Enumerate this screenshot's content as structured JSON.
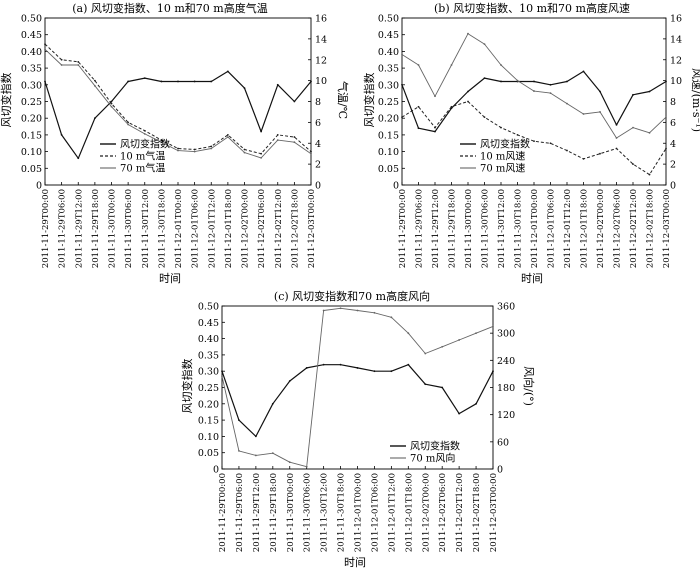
{
  "chart_data": [
    {
      "type": "line",
      "title": "(a) 风切变指数、10 m和70 m高度气温",
      "xlabel": "时间",
      "ylabel_left": "风切变指数",
      "ylabel_right": "气温/℃",
      "ylim_left": [
        0,
        0.5
      ],
      "ylim_right": [
        0,
        16
      ],
      "yticks_left": [
        "0",
        "0.05",
        "0.10",
        "0.15",
        "0.20",
        "0.25",
        "0.30",
        "0.35",
        "0.40",
        "0.45",
        "0.50"
      ],
      "yticks_right": [
        "0",
        "2",
        "4",
        "6",
        "8",
        "10",
        "12",
        "14",
        "16"
      ],
      "legend_position": "bottom-left",
      "x": [
        "2011-11-29T00:00",
        "2011-11-29T06:00",
        "2011-11-29T12:00",
        "2011-11-29T18:00",
        "2011-11-30T00:00",
        "2011-11-30T06:00",
        "2011-11-30T12:00",
        "2011-11-30T18:00",
        "2011-12-01T00:00",
        "2011-12-01T06:00",
        "2011-12-01T12:00",
        "2011-12-01T18:00",
        "2011-12-02T00:00",
        "2011-12-02T06:00",
        "2011-12-02T12:00",
        "2011-12-02T18:00",
        "2011-12-03T00:00"
      ],
      "series": [
        {
          "name": "风切变指数",
          "axis": "left",
          "style": "solid-dark",
          "values": [
            0.31,
            0.15,
            0.08,
            0.2,
            0.25,
            0.31,
            0.32,
            0.31,
            0.31,
            0.31,
            0.31,
            0.34,
            0.29,
            0.16,
            0.3,
            0.25,
            0.31
          ]
        },
        {
          "name": "10 m气温",
          "axis": "right",
          "style": "dashed",
          "values": [
            13.5,
            12.0,
            11.8,
            10.0,
            7.8,
            6.0,
            5.2,
            4.3,
            3.5,
            3.4,
            3.7,
            4.8,
            3.4,
            3.0,
            4.8,
            4.6,
            3.2
          ]
        },
        {
          "name": "70 m气温",
          "axis": "right",
          "style": "solid-thin",
          "values": [
            13.0,
            11.5,
            11.5,
            9.5,
            7.5,
            5.8,
            4.9,
            4.1,
            3.3,
            3.2,
            3.5,
            4.6,
            3.1,
            2.6,
            4.3,
            4.1,
            3.0
          ]
        }
      ]
    },
    {
      "type": "line",
      "title": "(b) 风切变指数、10 m和70 m高度风速",
      "xlabel": "时间",
      "ylabel_left": "风切变指数",
      "ylabel_right": "风速/(m·s⁻¹)",
      "ylim_left": [
        0,
        0.5
      ],
      "ylim_right": [
        0,
        16
      ],
      "yticks_left": [
        "0",
        "0.05",
        "0.10",
        "0.15",
        "0.20",
        "0.25",
        "0.30",
        "0.35",
        "0.40",
        "0.45",
        "0.50"
      ],
      "yticks_right": [
        "0",
        "2",
        "4",
        "6",
        "8",
        "10",
        "12",
        "14",
        "16"
      ],
      "legend_position": "bottom-center",
      "x": [
        "2011-11-29T00:00",
        "2011-11-29T06:00",
        "2011-11-29T12:00",
        "2011-11-29T18:00",
        "2011-11-30T00:00",
        "2011-11-30T06:00",
        "2011-11-30T12:00",
        "2011-11-30T18:00",
        "2011-12-01T00:00",
        "2011-12-01T06:00",
        "2011-12-01T12:00",
        "2011-12-01T18:00",
        "2011-12-02T00:00",
        "2011-12-02T06:00",
        "2011-12-02T12:00",
        "2011-12-02T18:00",
        "2011-12-03T00:00"
      ],
      "series": [
        {
          "name": "风切变指数",
          "axis": "left",
          "style": "solid-dark",
          "values": [
            0.3,
            0.17,
            0.16,
            0.23,
            0.28,
            0.32,
            0.31,
            0.31,
            0.31,
            0.3,
            0.31,
            0.34,
            0.28,
            0.18,
            0.27,
            0.28,
            0.31
          ]
        },
        {
          "name": "10 m风速",
          "axis": "right",
          "style": "dashed",
          "values": [
            6.5,
            7.5,
            5.5,
            7.5,
            8.0,
            6.5,
            5.5,
            4.8,
            4.2,
            4.0,
            3.3,
            2.5,
            3.0,
            3.5,
            2.0,
            1.0,
            3.5
          ]
        },
        {
          "name": "70 m风速",
          "axis": "right",
          "style": "solid-thin",
          "values": [
            12.5,
            11.5,
            8.5,
            11.5,
            14.5,
            13.5,
            11.5,
            10.0,
            9.0,
            8.8,
            7.8,
            6.8,
            7.0,
            4.5,
            5.5,
            5.0,
            6.5
          ]
        }
      ]
    },
    {
      "type": "line",
      "title": "(c) 风切变指数和70 m高度风向",
      "xlabel": "时间",
      "ylabel_left": "风切变指数",
      "ylabel_right": "风向/(°)",
      "ylim_left": [
        0,
        0.5
      ],
      "ylim_right": [
        0,
        360
      ],
      "yticks_left": [
        "0",
        "0.05",
        "0.10",
        "0.15",
        "0.20",
        "0.25",
        "0.30",
        "0.35",
        "0.40",
        "0.45",
        "0.50"
      ],
      "yticks_right": [
        "0",
        "60",
        "120",
        "180",
        "240",
        "300",
        "360"
      ],
      "legend_position": "bottom-right",
      "x": [
        "2011-11-29T00:00",
        "2011-11-29T06:00",
        "2011-11-29T12:00",
        "2011-11-29T18:00",
        "2011-11-30T00:00",
        "2011-11-30T06:00",
        "2011-11-30T12:00",
        "2011-11-30T18:00",
        "2011-12-01T00:00",
        "2011-12-01T06:00",
        "2011-12-01T12:00",
        "2011-12-01T18:00",
        "2011-12-02T00:00",
        "2011-12-02T06:00",
        "2011-12-02T12:00",
        "2011-12-02T18:00",
        "2011-12-03T00:00"
      ],
      "series": [
        {
          "name": "风切变指数",
          "axis": "left",
          "style": "solid-dark",
          "values": [
            0.3,
            0.15,
            0.1,
            0.2,
            0.27,
            0.31,
            0.32,
            0.32,
            0.31,
            0.3,
            0.3,
            0.32,
            0.26,
            0.25,
            0.17,
            0.2,
            0.3
          ]
        },
        {
          "name": "70 m风向",
          "axis": "right",
          "style": "solid-thin",
          "values": [
            205,
            40,
            30,
            35,
            15,
            5,
            350,
            355,
            350,
            345,
            335,
            300,
            255,
            270,
            285,
            300,
            315
          ]
        }
      ]
    }
  ]
}
